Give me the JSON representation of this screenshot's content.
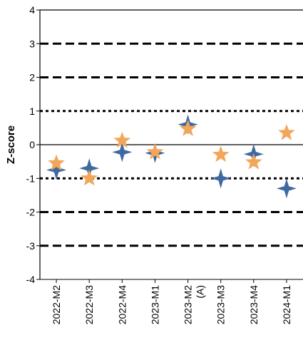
{
  "chart_data": {
    "type": "scatter",
    "title": "",
    "xlabel": "",
    "ylabel": "Z-score",
    "ylim": [
      -4,
      4
    ],
    "yticks": [
      -4,
      -3,
      -2,
      -1,
      0,
      1,
      2,
      3,
      4
    ],
    "categories": [
      [
        "2022-M2"
      ],
      [
        "2022-M3"
      ],
      [
        "2022-M4"
      ],
      [
        "2023-M1"
      ],
      [
        "2023-M2",
        "(A)"
      ],
      [
        "2023-M3"
      ],
      [
        "2023-M4"
      ],
      [
        "2024-M1"
      ]
    ],
    "reference_lines": [
      {
        "y": 3,
        "style": "dashed"
      },
      {
        "y": 2,
        "style": "dashed"
      },
      {
        "y": 1,
        "style": "dotted"
      },
      {
        "y": 0,
        "style": "solid"
      },
      {
        "y": -1,
        "style": "dotted"
      },
      {
        "y": -2,
        "style": "dashed"
      },
      {
        "y": -3,
        "style": "dashed"
      }
    ],
    "series": [
      {
        "marker": "four-point-star",
        "color": "#3F6AA1",
        "values": [
          -0.75,
          -0.7,
          -0.22,
          -0.25,
          0.6,
          -1.0,
          -0.28,
          -1.3
        ]
      },
      {
        "marker": "five-point-star",
        "color": "#F2A65A",
        "values": [
          -0.55,
          -1.0,
          0.12,
          -0.22,
          0.47,
          -0.3,
          -0.52,
          0.35
        ]
      }
    ]
  }
}
